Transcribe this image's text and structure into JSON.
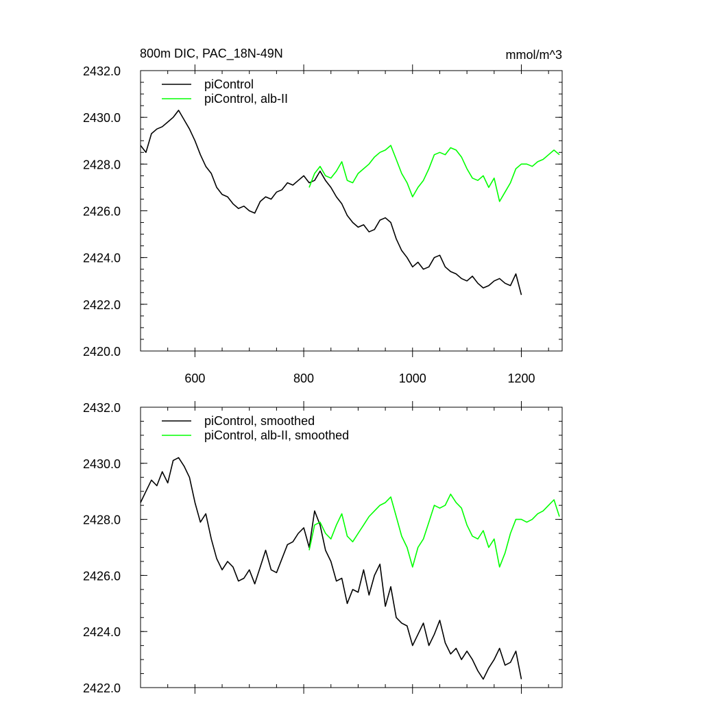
{
  "figure": {
    "title_left": "800m DIC, PAC_18N-49N",
    "title_right": "mmol/m^3"
  },
  "chart_data": [
    {
      "type": "line",
      "title": "800m DIC, PAC_18N-49N",
      "units": "mmol/m^3",
      "xlim": [
        500,
        1275
      ],
      "ylim": [
        2420.0,
        2432.0
      ],
      "xticks": [
        600,
        800,
        1000,
        1200
      ],
      "yticks": [
        2420.0,
        2422.0,
        2424.0,
        2426.0,
        2428.0,
        2430.0,
        2432.0
      ],
      "xtick_labels": [
        "600",
        "800",
        "1000",
        "1200"
      ],
      "ytick_labels": [
        "2420.0",
        "2422.0",
        "2424.0",
        "2426.0",
        "2428.0",
        "2430.0",
        "2432.0"
      ],
      "grid": false,
      "legend_position": "top-left",
      "series": [
        {
          "name": "piControl",
          "color": "#000000",
          "x": [
            500,
            510,
            520,
            530,
            540,
            550,
            560,
            570,
            580,
            590,
            600,
            610,
            620,
            630,
            640,
            650,
            660,
            670,
            680,
            690,
            700,
            710,
            720,
            730,
            740,
            750,
            760,
            770,
            780,
            790,
            800,
            810,
            820,
            830,
            840,
            850,
            860,
            870,
            880,
            890,
            900,
            910,
            920,
            930,
            940,
            950,
            960,
            970,
            980,
            990,
            1000,
            1010,
            1020,
            1030,
            1040,
            1050,
            1060,
            1070,
            1080,
            1090,
            1100,
            1110,
            1120,
            1130,
            1140,
            1150,
            1160,
            1170,
            1180,
            1190,
            1200
          ],
          "y": [
            2428.8,
            2428.5,
            2429.3,
            2429.5,
            2429.6,
            2429.8,
            2430.0,
            2430.3,
            2429.9,
            2429.5,
            2429.0,
            2428.4,
            2427.9,
            2427.6,
            2427.0,
            2426.7,
            2426.6,
            2426.3,
            2426.1,
            2426.2,
            2426.0,
            2425.9,
            2426.4,
            2426.6,
            2426.5,
            2426.8,
            2426.9,
            2427.2,
            2427.1,
            2427.3,
            2427.5,
            2427.2,
            2427.3,
            2427.7,
            2427.3,
            2427.0,
            2426.6,
            2426.3,
            2425.8,
            2425.5,
            2425.3,
            2425.4,
            2425.1,
            2425.2,
            2425.6,
            2425.7,
            2425.5,
            2424.8,
            2424.3,
            2424.0,
            2423.6,
            2423.8,
            2423.5,
            2423.6,
            2424.0,
            2424.1,
            2423.6,
            2423.4,
            2423.3,
            2423.1,
            2423.0,
            2423.2,
            2422.9,
            2422.7,
            2422.8,
            2423.0,
            2423.1,
            2422.9,
            2422.8,
            2423.3,
            2422.4
          ]
        },
        {
          "name": "piControl, alb-II",
          "color": "#00ff00",
          "x": [
            810,
            820,
            830,
            840,
            850,
            860,
            870,
            880,
            890,
            900,
            910,
            920,
            930,
            940,
            950,
            960,
            970,
            980,
            990,
            1000,
            1010,
            1020,
            1030,
            1040,
            1050,
            1060,
            1070,
            1080,
            1090,
            1100,
            1110,
            1120,
            1130,
            1140,
            1150,
            1160,
            1170,
            1180,
            1190,
            1200,
            1210,
            1220,
            1230,
            1240,
            1250,
            1260,
            1270
          ],
          "y": [
            2427.0,
            2427.6,
            2427.9,
            2427.5,
            2427.4,
            2427.7,
            2428.1,
            2427.3,
            2427.2,
            2427.6,
            2427.8,
            2428.0,
            2428.3,
            2428.5,
            2428.6,
            2428.8,
            2428.2,
            2427.6,
            2427.2,
            2426.6,
            2427.0,
            2427.3,
            2427.8,
            2428.4,
            2428.5,
            2428.4,
            2428.7,
            2428.6,
            2428.3,
            2427.8,
            2427.4,
            2427.3,
            2427.5,
            2427.0,
            2427.4,
            2426.4,
            2426.8,
            2427.2,
            2427.8,
            2428.0,
            2428.0,
            2427.9,
            2428.1,
            2428.2,
            2428.4,
            2428.6,
            2428.4
          ]
        }
      ]
    },
    {
      "type": "line",
      "xlim": [
        500,
        1275
      ],
      "ylim": [
        2422.0,
        2432.0
      ],
      "xticks": [
        600,
        800,
        1000,
        1200
      ],
      "yticks": [
        2422.0,
        2424.0,
        2426.0,
        2428.0,
        2430.0,
        2432.0
      ],
      "ytick_labels": [
        "2422.0",
        "2424.0",
        "2426.0",
        "2428.0",
        "2430.0",
        "2432.0"
      ],
      "grid": false,
      "legend_position": "top-left",
      "series": [
        {
          "name": "piControl, smoothed",
          "color": "#000000",
          "x": [
            500,
            510,
            520,
            530,
            540,
            550,
            560,
            570,
            580,
            590,
            600,
            610,
            620,
            630,
            640,
            650,
            660,
            670,
            680,
            690,
            700,
            710,
            720,
            730,
            740,
            750,
            760,
            770,
            780,
            790,
            800,
            810,
            820,
            830,
            840,
            850,
            860,
            870,
            880,
            890,
            900,
            910,
            920,
            930,
            940,
            950,
            960,
            970,
            980,
            990,
            1000,
            1010,
            1020,
            1030,
            1040,
            1050,
            1060,
            1070,
            1080,
            1090,
            1100,
            1110,
            1120,
            1130,
            1140,
            1150,
            1160,
            1170,
            1180,
            1190,
            1200
          ],
          "y": [
            2428.6,
            2429.0,
            2429.4,
            2429.2,
            2429.7,
            2429.3,
            2430.1,
            2430.2,
            2429.9,
            2429.5,
            2428.6,
            2427.9,
            2428.2,
            2427.3,
            2426.6,
            2426.2,
            2426.5,
            2426.3,
            2425.8,
            2425.9,
            2426.2,
            2425.7,
            2426.3,
            2426.9,
            2426.2,
            2426.1,
            2426.6,
            2427.1,
            2427.2,
            2427.5,
            2427.7,
            2427.0,
            2428.3,
            2427.8,
            2426.9,
            2426.5,
            2425.8,
            2425.9,
            2425.0,
            2425.5,
            2425.4,
            2426.2,
            2425.3,
            2426.0,
            2426.4,
            2424.9,
            2425.6,
            2424.5,
            2424.3,
            2424.2,
            2423.5,
            2423.9,
            2424.3,
            2423.5,
            2423.9,
            2424.4,
            2423.6,
            2423.2,
            2423.4,
            2423.0,
            2423.3,
            2423.0,
            2422.6,
            2422.3,
            2422.7,
            2423.0,
            2423.4,
            2422.8,
            2422.9,
            2423.3,
            2422.3
          ]
        },
        {
          "name": "piControl, alb-II, smoothed",
          "color": "#00ff00",
          "x": [
            810,
            820,
            830,
            840,
            850,
            860,
            870,
            880,
            890,
            900,
            910,
            920,
            930,
            940,
            950,
            960,
            970,
            980,
            990,
            1000,
            1010,
            1020,
            1030,
            1040,
            1050,
            1060,
            1070,
            1080,
            1090,
            1100,
            1110,
            1120,
            1130,
            1140,
            1150,
            1160,
            1170,
            1180,
            1190,
            1200,
            1210,
            1220,
            1230,
            1240,
            1250,
            1260,
            1270
          ],
          "y": [
            2426.9,
            2427.8,
            2427.9,
            2427.5,
            2427.3,
            2427.8,
            2428.2,
            2427.4,
            2427.2,
            2427.5,
            2427.8,
            2428.1,
            2428.3,
            2428.5,
            2428.6,
            2428.8,
            2428.1,
            2427.4,
            2427.0,
            2426.3,
            2427.0,
            2427.3,
            2427.9,
            2428.5,
            2428.4,
            2428.5,
            2428.9,
            2428.6,
            2428.4,
            2427.8,
            2427.4,
            2427.3,
            2427.6,
            2427.0,
            2427.3,
            2426.3,
            2426.8,
            2427.5,
            2428.0,
            2428.0,
            2427.9,
            2428.0,
            2428.2,
            2428.3,
            2428.5,
            2428.7,
            2428.1
          ]
        }
      ]
    }
  ]
}
